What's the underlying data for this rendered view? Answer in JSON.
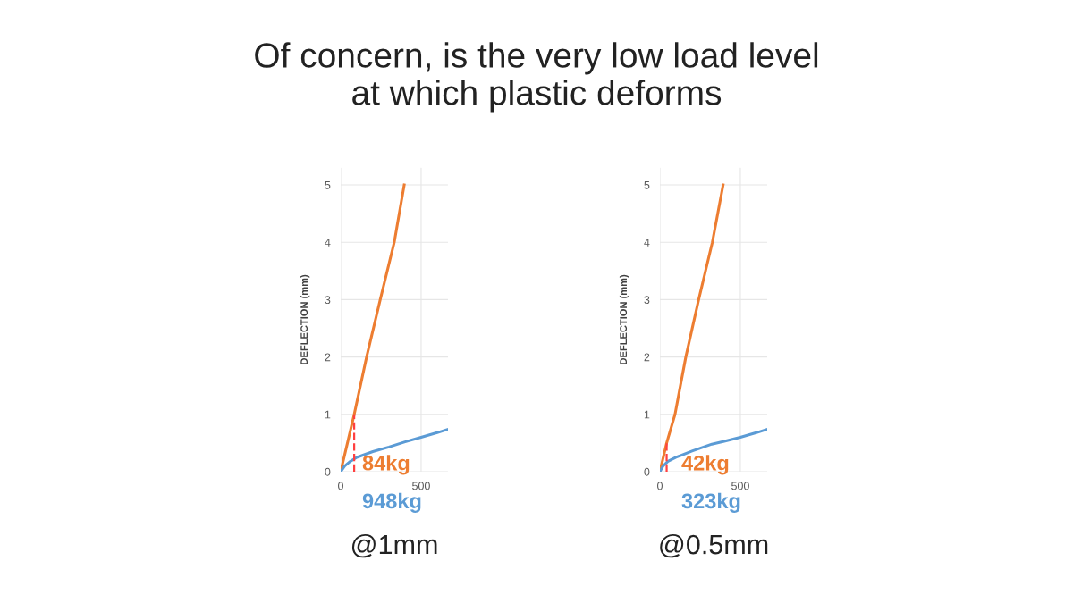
{
  "chart_data": [
    {
      "type": "line",
      "title": "Of concern, is the very low load level\nat which plastic deforms",
      "xlabel": "@1mm",
      "ylabel": "DEFLECTION (mm)",
      "xlim": [
        0,
        667
      ],
      "xticks": [
        0,
        500
      ],
      "ylim": [
        0,
        5.3
      ],
      "yticks": [
        0,
        1,
        2,
        3,
        4,
        5
      ],
      "grid": true,
      "series": [
        {
          "color": "#ed7d31",
          "x": [
            0,
            84,
            161,
            246,
            333,
            395
          ],
          "values": [
            0,
            1,
            2,
            3,
            4,
            5
          ]
        },
        {
          "color": "#5b9bd5",
          "x": [
            0,
            25,
            60,
            100,
            200,
            300,
            400,
            500,
            600,
            667
          ],
          "values": [
            0,
            0.1,
            0.18,
            0.25,
            0.35,
            0.43,
            0.52,
            0.6,
            0.68,
            0.74
          ]
        },
        {
          "color": "#ff4040",
          "type": "line",
          "line_style": "dashed",
          "x": [
            84,
            84
          ],
          "values": [
            0,
            1
          ]
        }
      ],
      "annotations": [
        "84kg",
        "948kg"
      ]
    },
    {
      "type": "line",
      "xlabel": "@0.5mm",
      "ylabel": "DEFLECTION (mm)",
      "xlim": [
        0,
        667
      ],
      "xticks": [
        0,
        500
      ],
      "ylim": [
        0,
        5.3
      ],
      "yticks": [
        0,
        1,
        2,
        3,
        4,
        5
      ],
      "grid": true,
      "series": [
        {
          "color": "#ed7d31",
          "x": [
            0,
            42,
            94,
            161,
            241,
            326,
            393
          ],
          "values": [
            0,
            0.5,
            1,
            2,
            3,
            4,
            5
          ]
        },
        {
          "color": "#5b9bd5",
          "x": [
            0,
            20,
            50,
            100,
            200,
            323,
            400,
            500,
            600,
            667
          ],
          "values": [
            0,
            0.1,
            0.18,
            0.25,
            0.36,
            0.48,
            0.53,
            0.6,
            0.68,
            0.74
          ]
        },
        {
          "color": "#ff4040",
          "type": "line",
          "line_style": "dashed",
          "x": [
            42,
            42
          ],
          "values": [
            0,
            0.5
          ]
        }
      ],
      "annotations": [
        "42kg",
        "323kg"
      ]
    }
  ]
}
